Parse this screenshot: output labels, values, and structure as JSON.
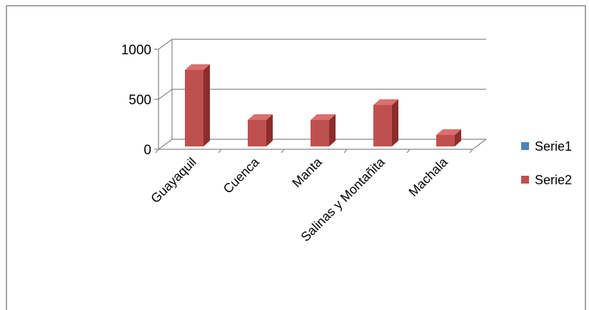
{
  "chart_data": {
    "type": "bar",
    "style": "3d-column",
    "categories": [
      "Guayaquil",
      "Cuenca",
      "Manta",
      "Salinas y Montañita",
      "Machala"
    ],
    "series": [
      {
        "name": "Serie1",
        "values": [
          0,
          0,
          0,
          0,
          0
        ],
        "color": "#4F81BD"
      },
      {
        "name": "Serie2",
        "values": [
          800,
          300,
          300,
          450,
          150
        ],
        "color": "#C0504D",
        "side_color": "#8B2E2B",
        "top_color": "#D9706D"
      }
    ],
    "yticks": [
      "0",
      "500",
      "1000"
    ],
    "ylim": [
      0,
      1000
    ],
    "grid": true,
    "legend_position": "right"
  }
}
